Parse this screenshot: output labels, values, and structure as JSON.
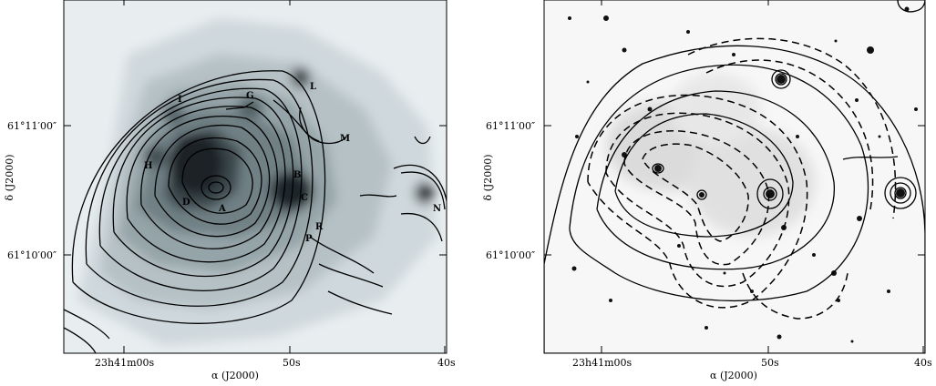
{
  "left_panel": {
    "dec_ticks": [
      "61°11′00″",
      "61°10′00″"
    ],
    "ra_ticks": [
      "23h41m00s",
      "50s",
      "40s"
    ],
    "ylabel": "δ (J2000)",
    "xlabel": "α (J2000)",
    "source_labels": [
      "L",
      "G",
      "I",
      "M",
      "H",
      "B",
      "D",
      "C",
      "A",
      "R",
      "P",
      "N"
    ]
  },
  "right_panel": {
    "dec_ticks": [
      "61°11′00″",
      "61°10′00″"
    ],
    "ra_ticks": [
      "23h41m00s",
      "50s",
      "40s"
    ],
    "ylabel": "δ (J2000)",
    "xlabel": "α (J2000)"
  }
}
